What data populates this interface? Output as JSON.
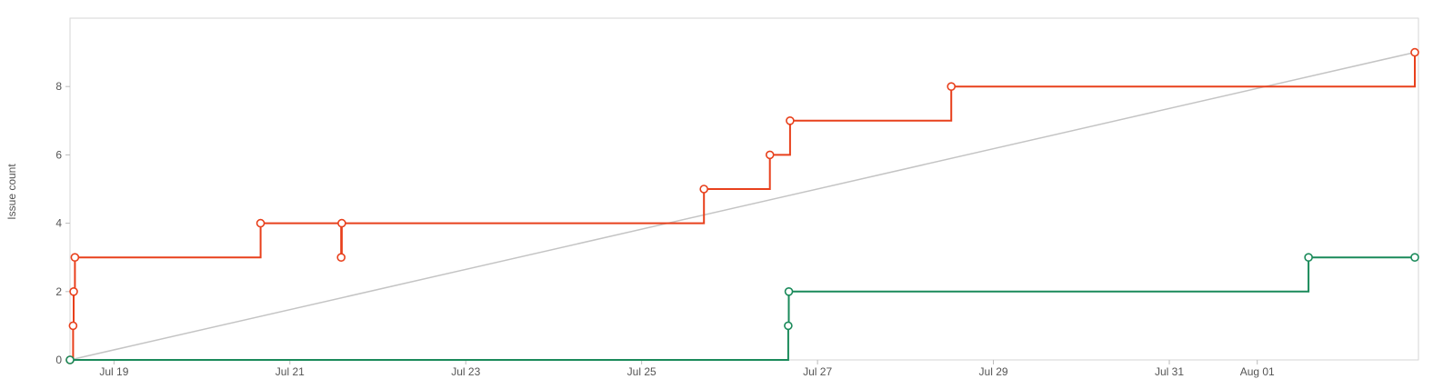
{
  "chart_data": {
    "type": "line",
    "title": "",
    "xlabel": "",
    "ylabel": "Issue count",
    "ylim": [
      0,
      10
    ],
    "xlim": [
      "2024-07-18T12:00",
      "2024-08-02T19:00"
    ],
    "x_ticks": [
      {
        "date": "2024-07-19",
        "label": "Jul 19"
      },
      {
        "date": "2024-07-21",
        "label": "Jul 21"
      },
      {
        "date": "2024-07-23",
        "label": "Jul 23"
      },
      {
        "date": "2024-07-25",
        "label": "Jul 25"
      },
      {
        "date": "2024-07-27",
        "label": "Jul 27"
      },
      {
        "date": "2024-07-29",
        "label": "Jul 29"
      },
      {
        "date": "2024-07-31",
        "label": "Jul 31"
      },
      {
        "date": "2024-08-01",
        "label": "Aug 01"
      }
    ],
    "y_ticks": [
      0,
      2,
      4,
      6,
      8
    ],
    "grid": false,
    "legend": "none",
    "series": [
      {
        "color": "#e8401c",
        "style": "step",
        "points": [
          {
            "x": "2024-07-18T12:00",
            "y": 0
          },
          {
            "x": "2024-07-18T12:50",
            "y": 1
          },
          {
            "x": "2024-07-18T13:00",
            "y": 2
          },
          {
            "x": "2024-07-18T13:20",
            "y": 3
          },
          {
            "x": "2024-07-20T16:00",
            "y": 4
          },
          {
            "x": "2024-07-21T14:00",
            "y": 3
          },
          {
            "x": "2024-07-21T14:10",
            "y": 4
          },
          {
            "x": "2024-07-25T17:00",
            "y": 5
          },
          {
            "x": "2024-07-26T11:00",
            "y": 6
          },
          {
            "x": "2024-07-26T16:30",
            "y": 7
          },
          {
            "x": "2024-07-28T12:30",
            "y": 8
          },
          {
            "x": "2024-08-02T19:00",
            "y": 9
          }
        ]
      },
      {
        "color": "#1a8a5a",
        "style": "step",
        "points": [
          {
            "x": "2024-07-18T12:00",
            "y": 0
          },
          {
            "x": "2024-07-26T16:00",
            "y": 1
          },
          {
            "x": "2024-07-26T16:10",
            "y": 2
          },
          {
            "x": "2024-08-01T14:00",
            "y": 3
          },
          {
            "x": "2024-08-02T19:00",
            "y": 3
          }
        ]
      },
      {
        "color": "#c4c4c4",
        "style": "linear",
        "points": [
          {
            "x": "2024-07-18T12:00",
            "y": 0
          },
          {
            "x": "2024-08-02T19:00",
            "y": 9
          }
        ]
      }
    ]
  }
}
